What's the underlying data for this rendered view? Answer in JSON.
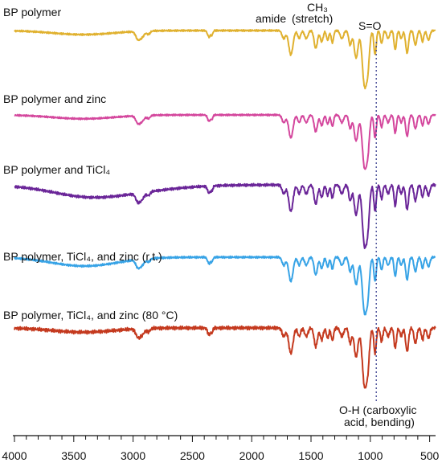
{
  "chart_data": {
    "type": "line",
    "title": "",
    "xlabel": "",
    "ylabel": "",
    "x_axis": {
      "xlim": [
        4000,
        450
      ],
      "reversed": true,
      "major_ticks": [
        4000,
        3500,
        3000,
        2500,
        2000,
        1500,
        1000,
        500
      ],
      "tick_labels": [
        "4000",
        "3500",
        "3000",
        "2500",
        "2000",
        "1500",
        "1000",
        "500"
      ],
      "minor_step": 100
    },
    "y_axis": {
      "shown": false,
      "stacked_offset_spectra": true
    },
    "grid": false,
    "legend": "none (series labelled above each spectrum)",
    "series": [
      {
        "name": "BP polymer",
        "color": "#e0b12f"
      },
      {
        "name": "BP polymer and zinc",
        "color": "#d4479d"
      },
      {
        "name": "BP polymer and TiCl₄",
        "color": "#6a2598"
      },
      {
        "name": "BP polymer, TiCl₄, and zinc (r.t.)",
        "color": "#37a3e6"
      },
      {
        "name": "BP polymer, TiCl₄, and zinc (80 °C)",
        "color": "#c4391e"
      }
    ],
    "annotations": [
      {
        "text": "amide",
        "x": 1670
      },
      {
        "text": "CH₃",
        "x": 1460
      },
      {
        "text": "(stretch)",
        "x": 1460
      },
      {
        "text": "S=O",
        "x": 1030
      },
      {
        "text": "O-H (carboxylic",
        "x": 950
      },
      {
        "text": "acid, bending)",
        "x": 950
      }
    ],
    "reference_line": {
      "x": 950,
      "style": "dotted",
      "color": "#3a3f8f"
    }
  }
}
